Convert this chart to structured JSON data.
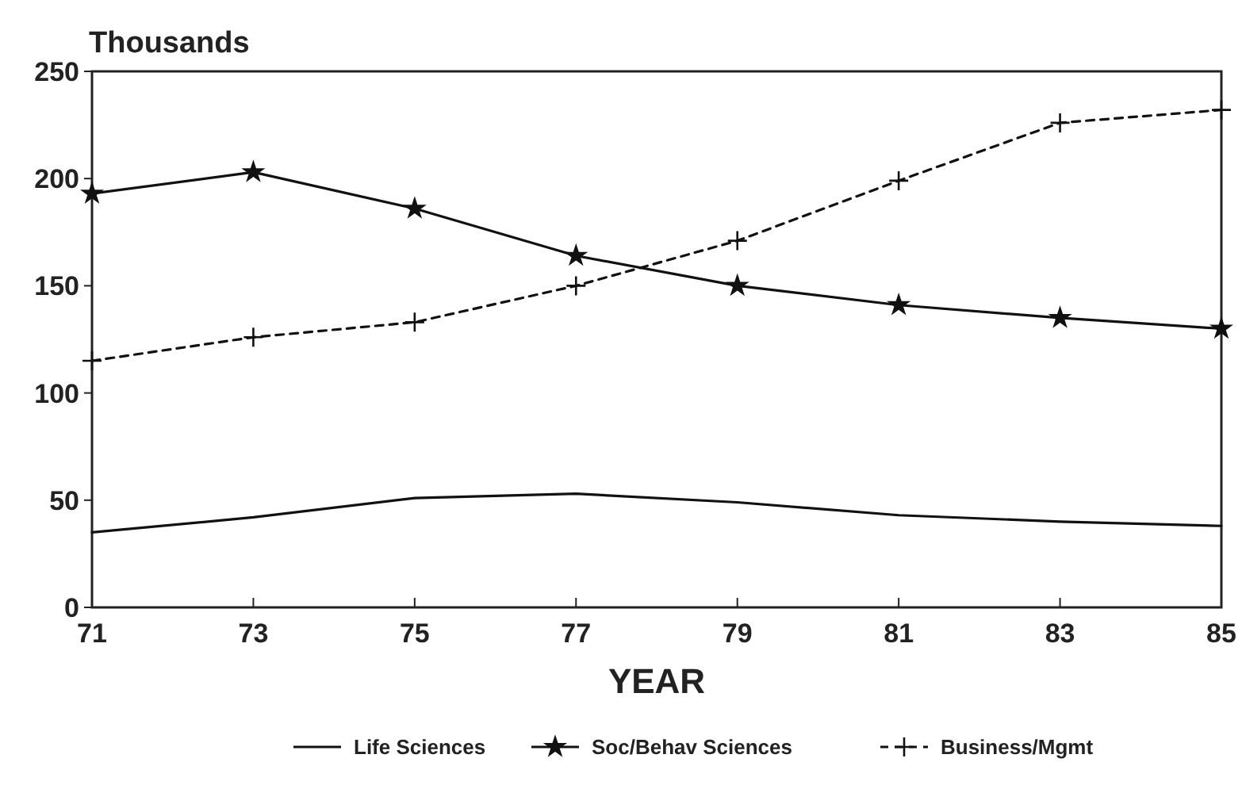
{
  "chart_data": {
    "type": "line",
    "xlabel": "YEAR",
    "ylabel": "Thousands",
    "x": [
      71,
      73,
      75,
      77,
      79,
      81,
      83,
      85
    ],
    "xlim": [
      71,
      85
    ],
    "xticks": [
      71,
      73,
      75,
      77,
      79,
      81,
      83,
      85
    ],
    "ylim": [
      0,
      250
    ],
    "yticks": [
      0,
      50,
      100,
      150,
      200,
      250
    ],
    "grid": false,
    "legend": "bottom",
    "series": [
      {
        "name": "Life Sciences",
        "color": "#111111",
        "marker": "none",
        "line_style": "solid",
        "values": [
          35,
          42,
          51,
          53,
          49,
          43,
          40,
          38
        ]
      },
      {
        "name": "Soc/Behav Sciences",
        "color": "#111111",
        "marker": "star",
        "line_style": "solid",
        "values": [
          193,
          203,
          186,
          164,
          150,
          141,
          135,
          130
        ]
      },
      {
        "name": "Business/Mgmt",
        "color": "#111111",
        "marker": "cross",
        "line_style": "dashed",
        "values": [
          115,
          126,
          133,
          150,
          171,
          199,
          226,
          232
        ]
      }
    ]
  }
}
